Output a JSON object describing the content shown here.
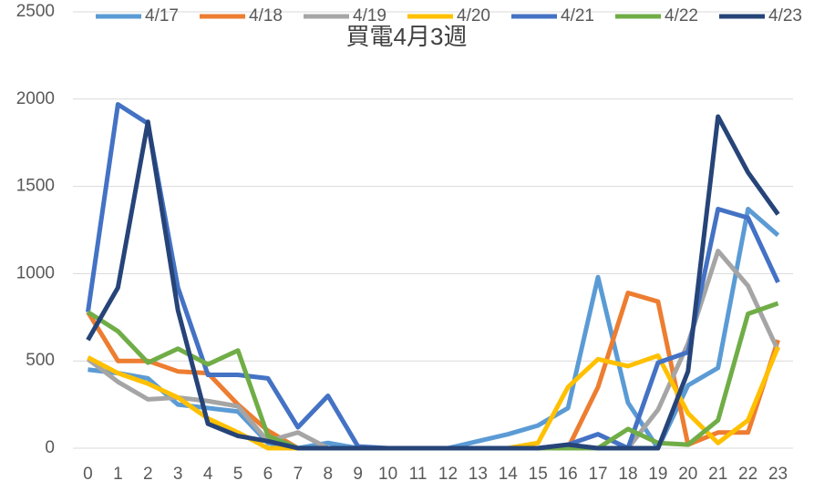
{
  "chart_data": {
    "type": "line",
    "title": "買電4月3週",
    "categories": [
      "0",
      "1",
      "2",
      "3",
      "4",
      "5",
      "6",
      "7",
      "8",
      "9",
      "10",
      "11",
      "12",
      "13",
      "14",
      "15",
      "16",
      "17",
      "18",
      "19",
      "20",
      "21",
      "22",
      "23"
    ],
    "series": [
      {
        "name": "4/17",
        "color": "#5b9bd5",
        "values": [
          450,
          430,
          400,
          250,
          230,
          210,
          30,
          0,
          30,
          0,
          0,
          0,
          0,
          40,
          80,
          130,
          230,
          980,
          260,
          0,
          360,
          460,
          1370,
          1220
        ]
      },
      {
        "name": "4/18",
        "color": "#ed7d31",
        "values": [
          780,
          500,
          500,
          440,
          430,
          250,
          100,
          0,
          0,
          0,
          0,
          0,
          0,
          0,
          0,
          0,
          0,
          350,
          890,
          840,
          20,
          90,
          90,
          620
        ]
      },
      {
        "name": "4/19",
        "color": "#a5a5a5",
        "values": [
          510,
          380,
          280,
          290,
          270,
          240,
          40,
          90,
          0,
          0,
          0,
          0,
          0,
          0,
          0,
          0,
          0,
          0,
          0,
          220,
          600,
          1130,
          930,
          560
        ]
      },
      {
        "name": "4/20",
        "color": "#ffc000",
        "values": [
          520,
          430,
          370,
          290,
          170,
          90,
          0,
          0,
          0,
          0,
          0,
          0,
          0,
          0,
          0,
          30,
          350,
          510,
          470,
          530,
          200,
          30,
          160,
          580
        ]
      },
      {
        "name": "4/21",
        "color": "#4472c4",
        "values": [
          780,
          1970,
          1860,
          920,
          420,
          420,
          400,
          120,
          300,
          10,
          0,
          0,
          0,
          0,
          0,
          0,
          20,
          80,
          0,
          490,
          550,
          1370,
          1320,
          950
        ]
      },
      {
        "name": "4/22",
        "color": "#70ad47",
        "values": [
          780,
          670,
          490,
          570,
          480,
          560,
          70,
          0,
          0,
          0,
          0,
          0,
          0,
          0,
          0,
          0,
          0,
          0,
          110,
          30,
          20,
          160,
          770,
          830
        ]
      },
      {
        "name": "4/23",
        "color": "#264478",
        "values": [
          620,
          920,
          1870,
          790,
          140,
          70,
          40,
          0,
          0,
          0,
          0,
          0,
          0,
          0,
          0,
          0,
          20,
          0,
          0,
          0,
          440,
          1900,
          1580,
          1340
        ]
      }
    ],
    "ylim": [
      0,
      2500
    ],
    "yticks": [
      0,
      500,
      1000,
      1500,
      2000,
      2500
    ],
    "grid": true,
    "legend": "top"
  }
}
